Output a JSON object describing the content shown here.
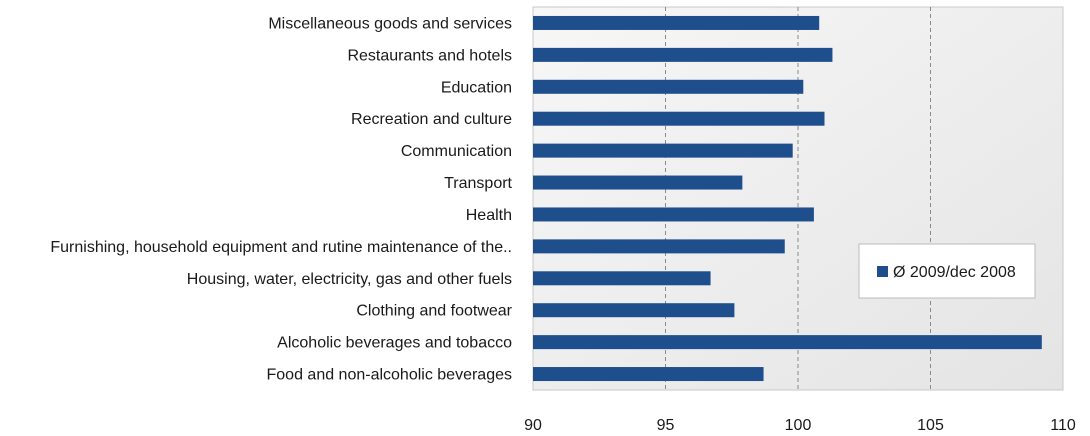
{
  "chart_data": {
    "type": "bar",
    "orientation": "horizontal",
    "categories": [
      "Food and non-alcoholic beverages",
      "Alcoholic beverages and tobacco",
      "Clothing and footwear",
      "Housing, water, electricity, gas and other fuels",
      "Furnishing, household equipment and rutine maintenance of the..",
      "Health",
      "Transport",
      "Communication",
      "Recreation and culture",
      "Education",
      "Restaurants and hotels",
      "Miscellaneous goods and services"
    ],
    "series": [
      {
        "name": "Ø 2009/dec 2008",
        "color": "#1f4e8c",
        "values": [
          98.7,
          109.2,
          97.6,
          96.7,
          99.5,
          100.6,
          97.9,
          99.8,
          101.0,
          100.2,
          101.3,
          100.8
        ]
      }
    ],
    "xlim": [
      90,
      110
    ],
    "xticks": [
      "90",
      "95",
      "100",
      "105",
      "110"
    ],
    "gridlines": "vertical dashed at 95, 100, 105",
    "legend": {
      "position": "right",
      "label": "Ø 2009/dec 2008"
    },
    "plot_background": "#eeeeee"
  }
}
